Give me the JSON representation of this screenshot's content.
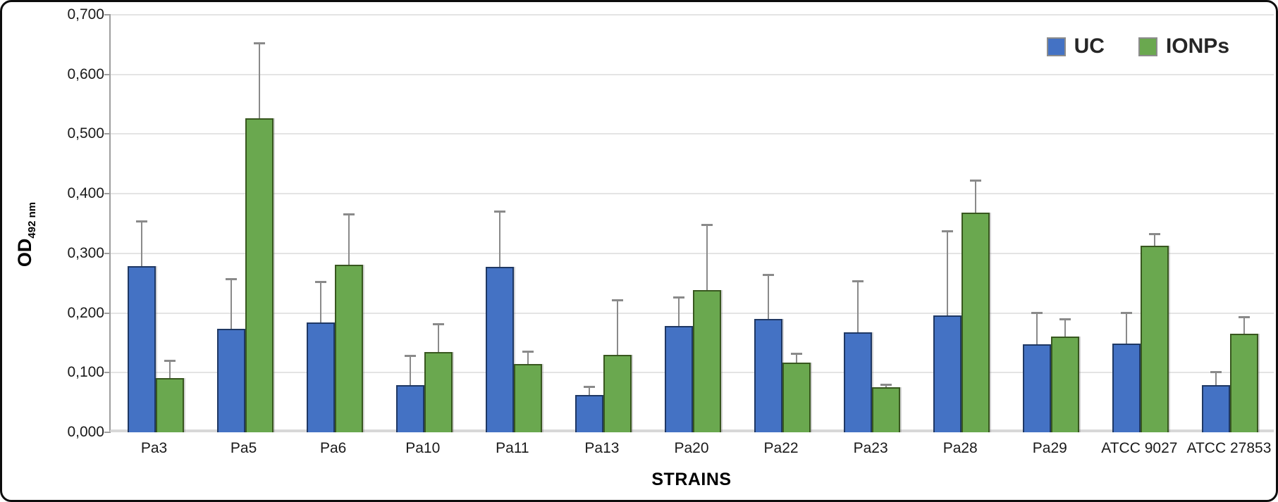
{
  "figure": {
    "background": "#ffffff",
    "border_color": "#0d0d0d",
    "gridline_color": "#e4e4e4",
    "error_bar_color": "#8a8a8a"
  },
  "chart_data": {
    "type": "bar",
    "title": "",
    "xlabel": "STRAINS",
    "ylabel": "OD 492 nm",
    "ylabel_main": "OD",
    "ylabel_sub": "492 nm",
    "ylim": [
      0,
      0.7
    ],
    "ytick_step": 0.1,
    "ytick_labels": [
      "0,000",
      "0,100",
      "0,200",
      "0,300",
      "0,400",
      "0,500",
      "0,600",
      "0,700"
    ],
    "decimal_separator": ",",
    "grid": true,
    "legend_position": "top-right",
    "categories": [
      "Pa3",
      "Pa5",
      "Pa6",
      "Pa10",
      "Pa11",
      "Pa13",
      "Pa20",
      "Pa22",
      "Pa23",
      "Pa28",
      "Pa29",
      "ATCC 9027",
      "ATCC 27853"
    ],
    "series": [
      {
        "name": "UC",
        "color": "#4472c4",
        "border_color": "#1f3864",
        "values": [
          0.278,
          0.174,
          0.184,
          0.079,
          0.277,
          0.062,
          0.178,
          0.19,
          0.168,
          0.196,
          0.147,
          0.149,
          0.079
        ],
        "error_plus": [
          0.075,
          0.082,
          0.067,
          0.048,
          0.092,
          0.014,
          0.047,
          0.073,
          0.085,
          0.141,
          0.053,
          0.051,
          0.021
        ]
      },
      {
        "name": "IONPs",
        "color": "#6aa84f",
        "border_color": "#38571f",
        "values": [
          0.091,
          0.526,
          0.281,
          0.135,
          0.114,
          0.13,
          0.239,
          0.117,
          0.075,
          0.368,
          0.16,
          0.313,
          0.165
        ],
        "error_plus": [
          0.028,
          0.126,
          0.084,
          0.046,
          0.021,
          0.091,
          0.108,
          0.014,
          0.004,
          0.054,
          0.029,
          0.019,
          0.027
        ]
      }
    ]
  }
}
